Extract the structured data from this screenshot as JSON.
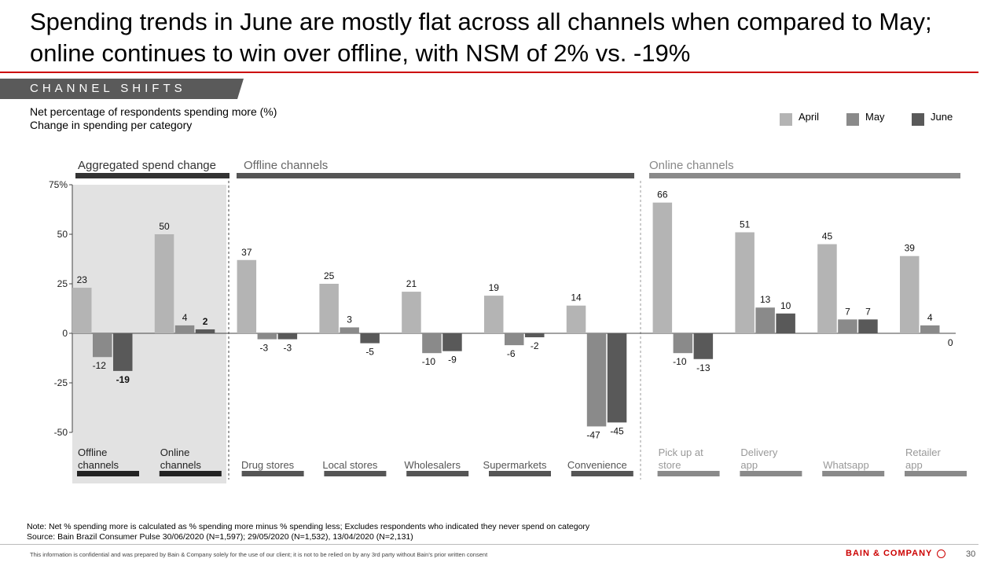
{
  "header": {
    "title_line1": "Spending trends in June are mostly flat across all channels when compared to May;",
    "title_line2": "online continues to win over offline, with NSM of 2% vs. -19%",
    "section_tag": "CHANNEL SHIFTS",
    "subtitle_line1": "Net percentage of respondents spending more (%)",
    "subtitle_line2": "Change in spending per category"
  },
  "legend": [
    {
      "label": "April",
      "color": "#b4b4b4"
    },
    {
      "label": "May",
      "color": "#8a8a8a"
    },
    {
      "label": "June",
      "color": "#595959"
    }
  ],
  "chart_data": {
    "type": "bar",
    "ylim": [
      -50,
      75
    ],
    "yticks": [
      75,
      50,
      25,
      0,
      -25,
      -50
    ],
    "ytick_labels": [
      "75%",
      "50",
      "25",
      "0",
      "-25",
      "-50"
    ],
    "groups": [
      {
        "name": "Aggregated spend change",
        "categories": [
          "Offline channels",
          "Online channels"
        ]
      },
      {
        "name": "Offline channels",
        "categories": [
          "Drug stores",
          "Local stores",
          "Wholesalers",
          "Supermarkets",
          "Convenience"
        ]
      },
      {
        "name": "Online channels",
        "categories": [
          "Pick up at store",
          "Delivery app",
          "Whatsapp",
          "Retailer app"
        ]
      }
    ],
    "categories": [
      "Offline channels",
      "Online channels",
      "Drug stores",
      "Local stores",
      "Wholesalers",
      "Supermarkets",
      "Convenience",
      "Pick up at store",
      "Delivery app",
      "Whatsapp",
      "Retailer app"
    ],
    "series": [
      {
        "name": "April",
        "values": [
          23,
          50,
          37,
          25,
          21,
          19,
          14,
          66,
          51,
          45,
          39
        ]
      },
      {
        "name": "May",
        "values": [
          -12,
          4,
          -3,
          3,
          -10,
          -6,
          -47,
          -10,
          13,
          7,
          4
        ]
      },
      {
        "name": "June",
        "values": [
          -19,
          2,
          -3,
          -5,
          -9,
          -2,
          -45,
          -13,
          10,
          7,
          0
        ]
      }
    ],
    "labels": [
      [
        "23",
        "-12",
        "-19"
      ],
      [
        "50",
        "4",
        "2"
      ],
      [
        "37",
        "-3",
        "-3"
      ],
      [
        "25",
        "3",
        "-5"
      ],
      [
        "21",
        "-10",
        "-9"
      ],
      [
        "19",
        "-6",
        "-2"
      ],
      [
        "14",
        "-47",
        "-45"
      ],
      [
        "66",
        "-10",
        "-13"
      ],
      [
        "51",
        "13",
        "10"
      ],
      [
        "45",
        "7",
        "7"
      ],
      [
        "39",
        "4",
        "0"
      ]
    ],
    "bold_labels": [
      [
        0,
        2
      ],
      [
        1,
        2
      ]
    ]
  },
  "footer": {
    "note": "Note: Net % spending more is calculated as % spending more minus % spending less; Excludes respondents who indicated they never spend on category",
    "source": "Source: Bain Brazil Consumer Pulse 30/06/2020 (N=1,597); 29/05/2020 (N=1,532), 13/04/2020 (N=2,131)",
    "disclaimer": "This information is confidential and was prepared by Bain & Company solely for the use of our client; it is not to be relied on by any 3rd party without Bain's prior written consent",
    "brand": "BAIN & COMPANY",
    "page_number": "30"
  }
}
